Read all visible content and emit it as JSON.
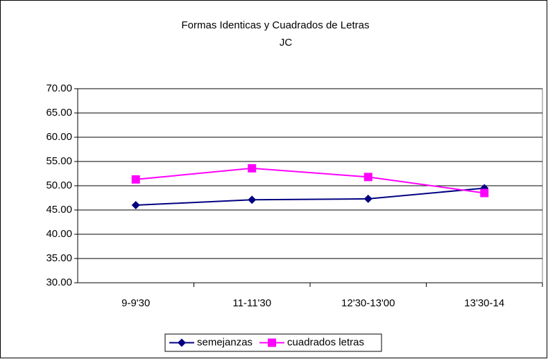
{
  "chart_data": {
    "type": "line",
    "title": "Formas Identicas y Cuadrados de Letras",
    "subtitle": "JC",
    "categories": [
      "9-9'30",
      "11-11'30",
      "12'30-13'00",
      "13'30-14"
    ],
    "series": [
      {
        "name": "semejanzas",
        "color": "#000080",
        "marker": "diamond",
        "values": [
          46.0,
          47.1,
          47.3,
          49.5
        ]
      },
      {
        "name": "cuadrados letras",
        "color": "#ff00ff",
        "marker": "square",
        "values": [
          51.3,
          53.6,
          51.8,
          48.5
        ]
      }
    ],
    "ylim": [
      30,
      70
    ],
    "yticks": [
      {
        "value": 30,
        "label": "30.00"
      },
      {
        "value": 35,
        "label": "35.00"
      },
      {
        "value": 40,
        "label": "40.00"
      },
      {
        "value": 45,
        "label": "45.00"
      },
      {
        "value": 50,
        "label": "50.00"
      },
      {
        "value": 55,
        "label": "55.00"
      },
      {
        "value": 60,
        "label": "60.00"
      },
      {
        "value": 65,
        "label": "65.00"
      },
      {
        "value": 70,
        "label": "70.00"
      }
    ],
    "grid": true,
    "legend": "bottom"
  }
}
